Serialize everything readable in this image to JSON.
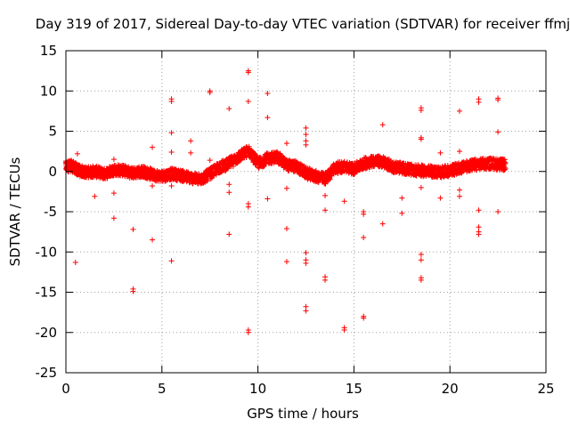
{
  "chart_data": {
    "type": "scatter",
    "title": "Day 319 of 2017, Sidereal Day-to-day VTEC variation (SDTVAR) for receiver ffmj",
    "xlabel": "GPS time / hours",
    "ylabel": "SDTVAR / TECUs",
    "xlim": [
      0,
      25
    ],
    "ylim": [
      -25,
      15
    ],
    "xticks": [
      0,
      5,
      10,
      15,
      20,
      25
    ],
    "yticks": [
      -25,
      -20,
      -15,
      -10,
      -5,
      0,
      5,
      10,
      15
    ],
    "grid": true,
    "marker": "+",
    "color": "#ff0000",
    "band": [
      [
        0.0,
        0.6
      ],
      [
        0.3,
        0.7
      ],
      [
        0.6,
        0.2
      ],
      [
        1.0,
        -0.1
      ],
      [
        1.5,
        0.0
      ],
      [
        2.0,
        -0.3
      ],
      [
        2.5,
        0.2
      ],
      [
        3.0,
        0.1
      ],
      [
        3.5,
        -0.2
      ],
      [
        4.0,
        0.0
      ],
      [
        4.5,
        -0.4
      ],
      [
        5.0,
        -0.6
      ],
      [
        5.5,
        -0.3
      ],
      [
        6.0,
        -0.5
      ],
      [
        6.5,
        -0.8
      ],
      [
        7.0,
        -1.0
      ],
      [
        7.5,
        -0.3
      ],
      [
        8.0,
        0.5
      ],
      [
        8.5,
        1.0
      ],
      [
        9.0,
        1.8
      ],
      [
        9.5,
        2.6
      ],
      [
        10.0,
        1.0
      ],
      [
        10.5,
        1.6
      ],
      [
        11.0,
        1.8
      ],
      [
        11.5,
        0.8
      ],
      [
        12.0,
        0.6
      ],
      [
        12.5,
        -0.2
      ],
      [
        13.0,
        -0.6
      ],
      [
        13.5,
        -0.9
      ],
      [
        14.0,
        0.4
      ],
      [
        14.5,
        0.6
      ],
      [
        15.0,
        0.3
      ],
      [
        15.5,
        1.0
      ],
      [
        16.0,
        1.3
      ],
      [
        16.5,
        1.2
      ],
      [
        17.0,
        0.6
      ],
      [
        17.5,
        0.4
      ],
      [
        18.0,
        0.2
      ],
      [
        18.5,
        0.1
      ],
      [
        19.0,
        0.0
      ],
      [
        19.5,
        -0.1
      ],
      [
        20.0,
        0.1
      ],
      [
        20.5,
        0.4
      ],
      [
        21.0,
        0.7
      ],
      [
        21.5,
        0.9
      ],
      [
        22.0,
        1.0
      ],
      [
        22.5,
        0.9
      ],
      [
        22.9,
        0.8
      ]
    ],
    "outliers": [
      [
        0.6,
        2.2
      ],
      [
        0.5,
        -11.3
      ],
      [
        1.5,
        -3.1
      ],
      [
        2.5,
        1.5
      ],
      [
        2.5,
        -2.7
      ],
      [
        2.5,
        -5.8
      ],
      [
        3.5,
        -7.2
      ],
      [
        3.5,
        -14.6
      ],
      [
        3.5,
        -14.9
      ],
      [
        4.5,
        3.0
      ],
      [
        4.5,
        -1.8
      ],
      [
        4.5,
        -8.5
      ],
      [
        5.5,
        9.0
      ],
      [
        5.5,
        8.7
      ],
      [
        5.5,
        4.8
      ],
      [
        5.5,
        2.4
      ],
      [
        5.5,
        -1.8
      ],
      [
        5.5,
        -11.1
      ],
      [
        6.5,
        3.8
      ],
      [
        6.5,
        2.3
      ],
      [
        7.5,
        10.0
      ],
      [
        7.5,
        9.8
      ],
      [
        7.5,
        1.4
      ],
      [
        8.5,
        7.8
      ],
      [
        8.5,
        -1.6
      ],
      [
        8.5,
        -2.6
      ],
      [
        8.5,
        -7.8
      ],
      [
        9.5,
        12.3
      ],
      [
        9.5,
        12.5
      ],
      [
        9.5,
        8.7
      ],
      [
        9.5,
        -4.0
      ],
      [
        9.5,
        -4.4
      ],
      [
        9.5,
        -19.7
      ],
      [
        9.5,
        -20.0
      ],
      [
        10.5,
        9.7
      ],
      [
        10.5,
        6.7
      ],
      [
        10.5,
        -3.4
      ],
      [
        11.5,
        3.5
      ],
      [
        11.5,
        -2.1
      ],
      [
        11.5,
        -7.1
      ],
      [
        11.5,
        -11.2
      ],
      [
        12.5,
        5.4
      ],
      [
        12.5,
        4.6
      ],
      [
        12.5,
        3.8
      ],
      [
        12.5,
        3.3
      ],
      [
        12.5,
        -10.1
      ],
      [
        12.5,
        -11.0
      ],
      [
        12.5,
        -11.4
      ],
      [
        12.5,
        -16.8
      ],
      [
        12.5,
        -17.3
      ],
      [
        13.5,
        -4.8
      ],
      [
        13.5,
        -13.1
      ],
      [
        13.5,
        -13.5
      ],
      [
        13.5,
        -3.0
      ],
      [
        14.5,
        -3.7
      ],
      [
        14.5,
        -19.4
      ],
      [
        14.5,
        -19.7
      ],
      [
        15.5,
        -5.0
      ],
      [
        15.5,
        -5.3
      ],
      [
        15.5,
        -8.2
      ],
      [
        15.5,
        -18.0
      ],
      [
        15.5,
        -18.2
      ],
      [
        16.5,
        5.8
      ],
      [
        16.5,
        -6.5
      ],
      [
        17.5,
        -3.3
      ],
      [
        17.5,
        -5.2
      ],
      [
        18.5,
        7.9
      ],
      [
        18.5,
        7.6
      ],
      [
        18.5,
        4.2
      ],
      [
        18.5,
        4.0
      ],
      [
        18.5,
        -2.0
      ],
      [
        18.5,
        -10.3
      ],
      [
        18.5,
        -11.0
      ],
      [
        18.5,
        -13.2
      ],
      [
        18.5,
        -13.5
      ],
      [
        19.5,
        2.3
      ],
      [
        19.5,
        -3.3
      ],
      [
        20.5,
        7.5
      ],
      [
        20.5,
        2.5
      ],
      [
        20.5,
        -2.3
      ],
      [
        20.5,
        -3.1
      ],
      [
        21.5,
        9.0
      ],
      [
        21.5,
        8.6
      ],
      [
        21.5,
        -4.8
      ],
      [
        21.5,
        -6.9
      ],
      [
        21.5,
        -7.5
      ],
      [
        21.5,
        -7.8
      ],
      [
        22.5,
        9.1
      ],
      [
        22.5,
        8.9
      ],
      [
        22.5,
        4.9
      ],
      [
        22.5,
        -5.0
      ]
    ]
  }
}
